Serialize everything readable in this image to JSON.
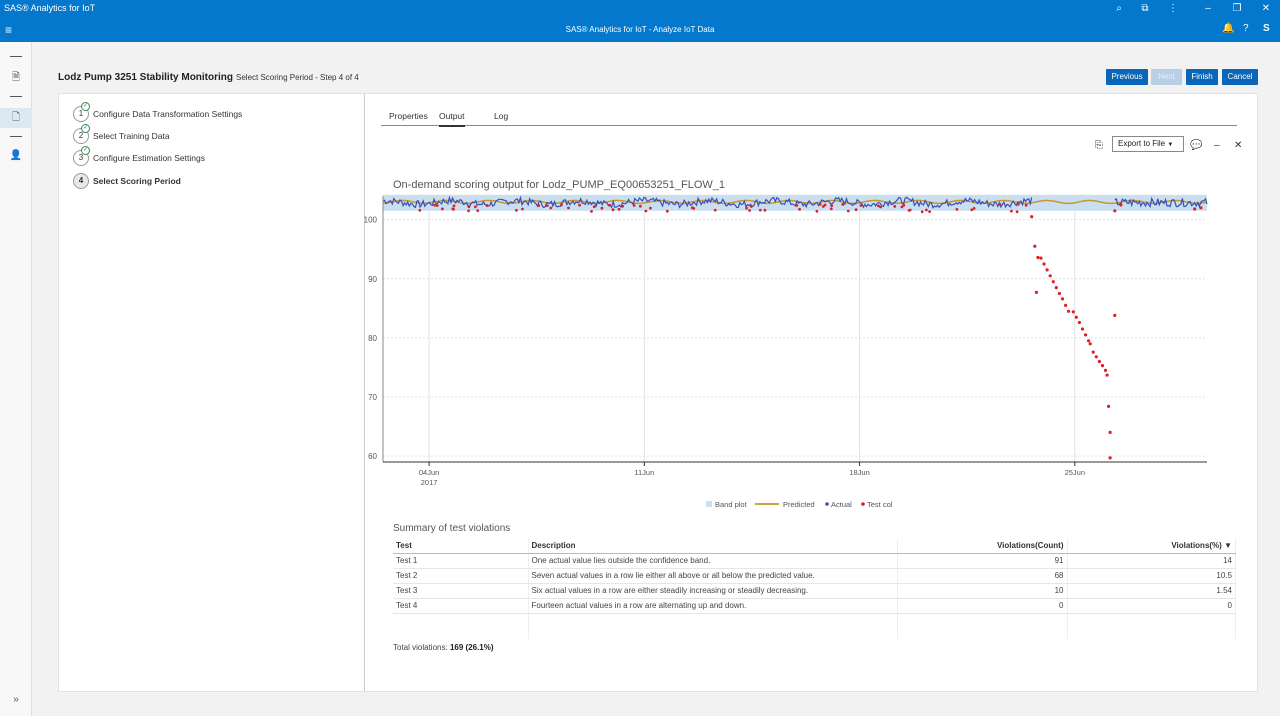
{
  "window": {
    "app_title": "SAS® Analytics for IoT",
    "appbar_title": "SAS® Analytics for IoT - Analyze IoT Data",
    "user_initial": "S"
  },
  "header": {
    "title": "Lodz Pump 3251 Stability Monitoring",
    "subtitle": "Select Scoring Period - Step 4 of 4"
  },
  "buttons": {
    "previous": "Previous",
    "next": "Next",
    "finish": "Finish",
    "cancel": "Cancel"
  },
  "steps": [
    {
      "num": "1",
      "label": "Configure Data Transformation Settings",
      "done": true
    },
    {
      "num": "2",
      "label": "Select Training Data",
      "done": true
    },
    {
      "num": "3",
      "label": "Configure Estimation Settings",
      "done": true
    },
    {
      "num": "4",
      "label": "Select Scoring Period",
      "done": false
    }
  ],
  "tabs": [
    "Properties",
    "Output",
    "Log"
  ],
  "active_tab": "Output",
  "export_label": "Export to File",
  "colors": {
    "brand": "#0378cd",
    "button": "#0a66b8",
    "band": "#c9dff0",
    "predicted": "#c8962a",
    "actual": "#3a4fb8",
    "test_col": "#e02020"
  },
  "chart_data": {
    "type": "line",
    "title": "On-demand scoring output for Lodz_PUMP_EQ00653251_FLOW_1",
    "xlabel": "",
    "ylabel": "",
    "x_ticks": [
      {
        "label": "04Jun",
        "sub": "2017",
        "day": 4
      },
      {
        "label": "11Jun",
        "sub": "",
        "day": 11
      },
      {
        "label": "18Jun",
        "sub": "",
        "day": 18
      },
      {
        "label": "25Jun",
        "sub": "",
        "day": 25
      }
    ],
    "xlim": [
      2.5,
      29.3
    ],
    "ylim": [
      59,
      104
    ],
    "y_ticks": [
      60,
      70,
      80,
      90,
      100
    ],
    "legend": [
      "Band plot",
      "Predicted",
      "Actual",
      "Test col"
    ],
    "legend_position": "bottom",
    "grid": true,
    "band": {
      "lower": 101.5,
      "upper": 104.2
    },
    "predicted_level": 103.0,
    "actual_baseline": 102.9,
    "test_points": [
      {
        "x": 23.6,
        "y": 100.5
      },
      {
        "x": 23.7,
        "y": 95.5
      },
      {
        "x": 23.75,
        "y": 87.7
      },
      {
        "x": 23.8,
        "y": 93.6
      },
      {
        "x": 23.9,
        "y": 93.5
      },
      {
        "x": 24.0,
        "y": 92.5
      },
      {
        "x": 24.1,
        "y": 91.5
      },
      {
        "x": 24.2,
        "y": 90.5
      },
      {
        "x": 24.3,
        "y": 89.5
      },
      {
        "x": 24.4,
        "y": 88.5
      },
      {
        "x": 24.5,
        "y": 87.5
      },
      {
        "x": 24.6,
        "y": 86.6
      },
      {
        "x": 24.7,
        "y": 85.5
      },
      {
        "x": 24.8,
        "y": 84.5
      },
      {
        "x": 24.95,
        "y": 84.4
      },
      {
        "x": 25.05,
        "y": 83.5
      },
      {
        "x": 25.15,
        "y": 82.6
      },
      {
        "x": 25.25,
        "y": 81.5
      },
      {
        "x": 25.35,
        "y": 80.5
      },
      {
        "x": 25.45,
        "y": 79.5
      },
      {
        "x": 25.5,
        "y": 79.0
      },
      {
        "x": 25.6,
        "y": 77.6
      },
      {
        "x": 25.7,
        "y": 76.8
      },
      {
        "x": 25.8,
        "y": 76.0
      },
      {
        "x": 25.9,
        "y": 75.3
      },
      {
        "x": 26.0,
        "y": 74.5
      },
      {
        "x": 26.05,
        "y": 73.7
      },
      {
        "x": 26.1,
        "y": 68.4
      },
      {
        "x": 26.15,
        "y": 64.0
      },
      {
        "x": 26.15,
        "y": 59.7
      },
      {
        "x": 26.3,
        "y": 83.8
      },
      {
        "x": 26.3,
        "y": 101.5
      },
      {
        "x": 26.5,
        "y": 102.5
      },
      {
        "x": 28.9,
        "y": 101.8
      },
      {
        "x": 29.1,
        "y": 102.0
      }
    ]
  },
  "summary": {
    "title": "Summary of test violations",
    "columns": [
      "Test",
      "Description",
      "Violations(Count)",
      "Violations(%)"
    ],
    "sort_indicator": "▼",
    "rows": [
      {
        "test": "Test 1",
        "description": "One actual value lies outside the confidence band.",
        "count": "91",
        "pct": "14"
      },
      {
        "test": "Test 2",
        "description": "Seven actual values in a row lie either all above or all below the predicted value.",
        "count": "68",
        "pct": "10.5"
      },
      {
        "test": "Test 3",
        "description": "Six actual values in a row are either steadily increasing or steadily decreasing.",
        "count": "10",
        "pct": "1.54"
      },
      {
        "test": "Test 4",
        "description": "Fourteen actual values in a row are alternating up and down.",
        "count": "0",
        "pct": "0"
      }
    ],
    "total_label": "Total violations:",
    "total_value": "169 (26.1%)"
  },
  "icons": {
    "menu": "hamburger-icon",
    "search": "search-icon",
    "puzzle": "extension-icon",
    "more": "more-vertical-icon",
    "notifications": "bell-icon",
    "help": "help-icon"
  }
}
